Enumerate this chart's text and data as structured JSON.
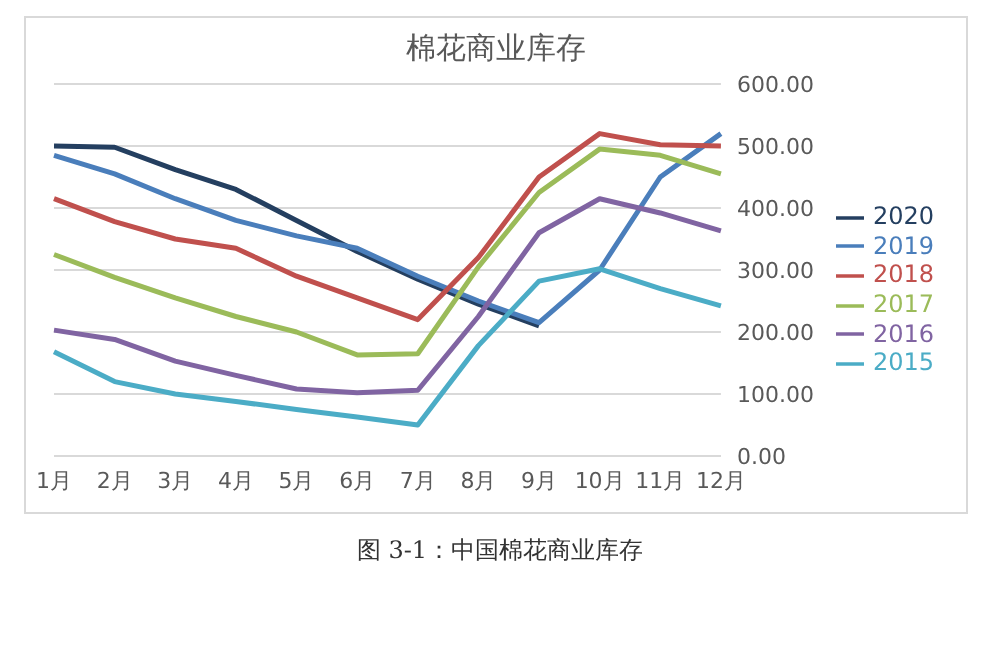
{
  "chart_data": {
    "type": "line",
    "title": "棉花商业库存",
    "categories": [
      "1月",
      "2月",
      "3月",
      "4月",
      "5月",
      "6月",
      "7月",
      "8月",
      "9月",
      "10月",
      "11月",
      "12月"
    ],
    "series": [
      {
        "name": "2020",
        "color": "#243f60",
        "values": [
          500,
          498,
          462,
          430,
          380,
          330,
          285,
          245,
          210,
          null,
          null,
          null
        ]
      },
      {
        "name": "2019",
        "color": "#4a7ebb",
        "values": [
          485,
          455,
          415,
          380,
          355,
          335,
          290,
          250,
          215,
          300,
          450,
          520
        ]
      },
      {
        "name": "2018",
        "color": "#c0504d",
        "values": [
          415,
          378,
          350,
          335,
          290,
          255,
          220,
          320,
          450,
          520,
          502,
          500
        ]
      },
      {
        "name": "2017",
        "color": "#9bbb59",
        "values": [
          325,
          288,
          255,
          225,
          200,
          163,
          165,
          305,
          425,
          495,
          485,
          455
        ]
      },
      {
        "name": "2016",
        "color": "#8064a2",
        "values": [
          203,
          188,
          153,
          130,
          108,
          102,
          106,
          225,
          360,
          415,
          392,
          363
        ]
      },
      {
        "name": "2015",
        "color": "#4bacc6",
        "values": [
          168,
          120,
          100,
          88,
          75,
          63,
          50,
          178,
          282,
          302,
          270,
          242
        ]
      }
    ],
    "ylim": [
      0,
      600
    ],
    "yticks": [
      {
        "value": 0,
        "label": "0.00"
      },
      {
        "value": 100,
        "label": "100.00"
      },
      {
        "value": 200,
        "label": "200.00"
      },
      {
        "value": 300,
        "label": "300.00"
      },
      {
        "value": 400,
        "label": "400.00"
      },
      {
        "value": 500,
        "label": "500.00"
      },
      {
        "value": 600,
        "label": "600.00"
      }
    ],
    "grid": "y",
    "legend": "right",
    "marker": "none",
    "line_style": "solid",
    "annotations": [
      "图 3-1：中国棉花商业库存"
    ]
  }
}
